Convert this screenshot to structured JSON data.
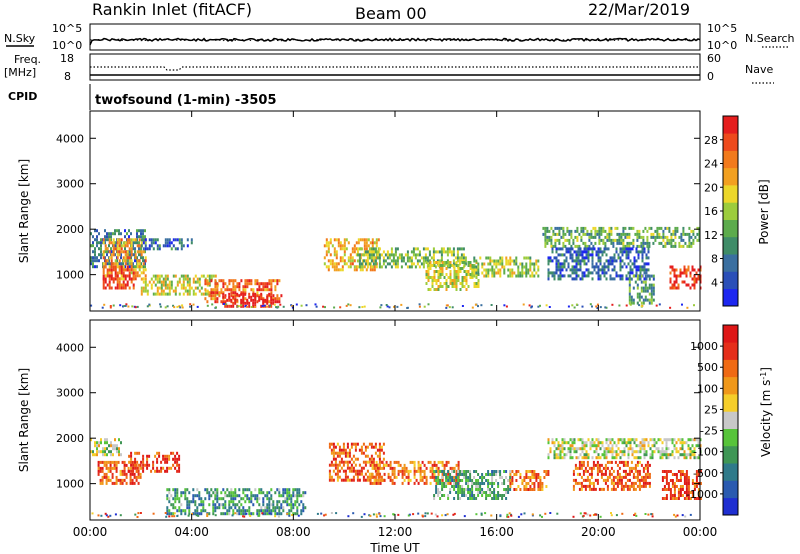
{
  "header": {
    "station": "Rankin Inlet (fitACF)",
    "beam": "Beam 00",
    "date": "22/Mar/2019"
  },
  "top_panels": {
    "noise": {
      "left_label": "N.Sky",
      "right_label": "N.Search",
      "left_ticks": [
        "10^5",
        "10^0"
      ],
      "right_ticks": [
        "10^5",
        "10^0"
      ]
    },
    "freq": {
      "left_label_1": "Freq.",
      "left_label_2": "[MHz]",
      "right_label": "Nave",
      "left_ticks": [
        "18",
        "8"
      ],
      "right_ticks": [
        "60",
        "0"
      ]
    },
    "cpid": {
      "label": "CPID",
      "value": "twofsound (1-min) -3505"
    }
  },
  "chart_data": [
    {
      "type": "heatmap",
      "title": "",
      "xlabel": "",
      "ylabel": "Slant Range [km]",
      "x_ticks": [
        "00:00",
        "04:00",
        "08:00",
        "12:00",
        "16:00",
        "20:00",
        "00:00"
      ],
      "xlim_hours": [
        0,
        24
      ],
      "y_ticks": [
        1000,
        2000,
        3000,
        4000
      ],
      "ylim": [
        200,
        4600
      ],
      "colorbar": {
        "label": "Power [dB]",
        "ticks": [
          "4",
          "8",
          "12",
          "16",
          "20",
          "24",
          "28"
        ],
        "colors": [
          "#1d27f0",
          "#2a4fb8",
          "#3a6fa0",
          "#3f8c68",
          "#5cab4c",
          "#9ccc3c",
          "#ecd72a",
          "#f2a020",
          "#f27a1c",
          "#ee4a1c",
          "#e51e1e"
        ]
      },
      "regions": [
        {
          "t": [
            0.0,
            2.2
          ],
          "r": [
            1200,
            2000
          ],
          "level": 0.25
        },
        {
          "t": [
            0.5,
            2.2
          ],
          "r": [
            900,
            1800
          ],
          "level": 0.7
        },
        {
          "t": [
            0.5,
            1.7
          ],
          "r": [
            700,
            1200
          ],
          "level": 0.9
        },
        {
          "t": [
            2.0,
            4.0
          ],
          "r": [
            1550,
            1800
          ],
          "level": 0.2
        },
        {
          "t": [
            2.0,
            5.0
          ],
          "r": [
            600,
            1000
          ],
          "level": 0.55
        },
        {
          "t": [
            4.5,
            7.5
          ],
          "r": [
            400,
            900
          ],
          "level": 0.8
        },
        {
          "t": [
            5.2,
            7.2
          ],
          "r": [
            300,
            600
          ],
          "level": 1.0
        },
        {
          "t": [
            9.2,
            11.4
          ],
          "r": [
            1100,
            1800
          ],
          "level": 0.65
        },
        {
          "t": [
            10.5,
            14.8
          ],
          "r": [
            1200,
            1600
          ],
          "level": 0.45
        },
        {
          "t": [
            13.2,
            15.3
          ],
          "r": [
            700,
            1300
          ],
          "level": 0.55
        },
        {
          "t": [
            15.0,
            17.6
          ],
          "r": [
            1000,
            1400
          ],
          "level": 0.5
        },
        {
          "t": [
            17.8,
            24.0
          ],
          "r": [
            1600,
            2050
          ],
          "level": 0.4
        },
        {
          "t": [
            18.0,
            22.0
          ],
          "r": [
            900,
            1600
          ],
          "level": 0.2
        },
        {
          "t": [
            21.2,
            22.2
          ],
          "r": [
            400,
            1000
          ],
          "level": 0.35
        },
        {
          "t": [
            22.8,
            24.0
          ],
          "r": [
            700,
            1200
          ],
          "level": 0.9
        }
      ]
    },
    {
      "type": "heatmap",
      "title": "",
      "xlabel": "Time UT",
      "ylabel": "Slant Range [km]",
      "x_ticks": [
        "00:00",
        "04:00",
        "08:00",
        "12:00",
        "16:00",
        "20:00",
        "00:00"
      ],
      "xlim_hours": [
        0,
        24
      ],
      "y_ticks": [
        1000,
        2000,
        3000,
        4000
      ],
      "ylim": [
        200,
        4600
      ],
      "colorbar": {
        "label": "Velocity [m s^-1]",
        "ticks": [
          "1000",
          "500",
          "100",
          "25",
          "-25",
          "-100",
          "-500",
          "-1000"
        ],
        "colors": [
          "#1f2fd1",
          "#2a5ab0",
          "#2f7a8a",
          "#3f9655",
          "#57c43a",
          "#c8c8c8",
          "#f5ce2a",
          "#f0981a",
          "#ef6a14",
          "#e52e1a",
          "#de1717"
        ]
      },
      "regions": [
        {
          "t": [
            0.0,
            1.2
          ],
          "r": [
            1650,
            2000
          ],
          "level": 0.5
        },
        {
          "t": [
            0.3,
            2.0
          ],
          "r": [
            1000,
            1500
          ],
          "level": 0.8
        },
        {
          "t": [
            1.5,
            3.5
          ],
          "r": [
            1300,
            1700
          ],
          "level": 0.85
        },
        {
          "t": [
            3.0,
            8.5
          ],
          "r": [
            350,
            900
          ],
          "level": 0.3
        },
        {
          "t": [
            9.4,
            11.6
          ],
          "r": [
            1100,
            1900
          ],
          "level": 0.8
        },
        {
          "t": [
            11.0,
            14.5
          ],
          "r": [
            1000,
            1500
          ],
          "level": 0.75
        },
        {
          "t": [
            13.5,
            16.5
          ],
          "r": [
            700,
            1300
          ],
          "level": 0.35
        },
        {
          "t": [
            16.5,
            18.0
          ],
          "r": [
            900,
            1300
          ],
          "level": 0.75
        },
        {
          "t": [
            18.0,
            24.0
          ],
          "r": [
            1600,
            2000
          ],
          "level": 0.5
        },
        {
          "t": [
            19.0,
            22.0
          ],
          "r": [
            900,
            1500
          ],
          "level": 0.8
        },
        {
          "t": [
            22.5,
            24.0
          ],
          "r": [
            700,
            1300
          ],
          "level": 0.85
        }
      ]
    }
  ]
}
